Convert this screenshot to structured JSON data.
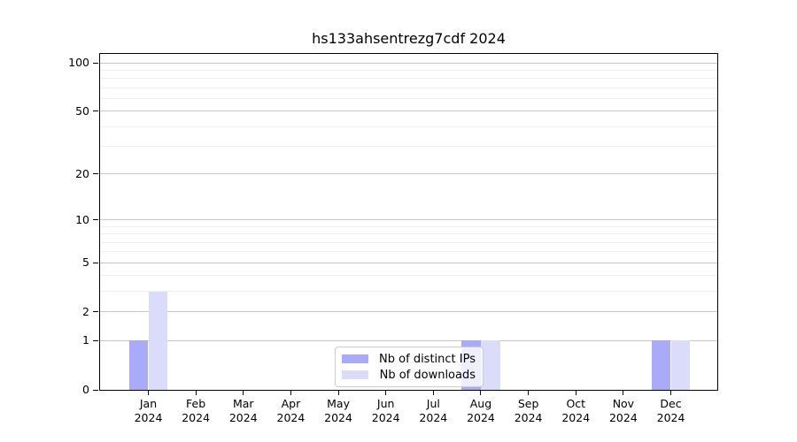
{
  "title": "hs133ahsentrezg7cdf 2024",
  "chart_data": {
    "type": "bar",
    "title": "hs133ahsentrezg7cdf 2024",
    "x_months": [
      "Jan",
      "Feb",
      "Mar",
      "Apr",
      "May",
      "Jun",
      "Jul",
      "Aug",
      "Sep",
      "Oct",
      "Nov",
      "Dec"
    ],
    "x_year": "2024",
    "series": [
      {
        "name": "Nb of distinct IPs",
        "color": "#a9abf9",
        "values": [
          1,
          0,
          0,
          0,
          0,
          0,
          0,
          1,
          0,
          0,
          0,
          1
        ]
      },
      {
        "name": "Nb of downloads",
        "color": "#dbdcfa",
        "values": [
          3,
          0,
          0,
          0,
          0,
          0,
          0,
          1,
          0,
          0,
          0,
          1
        ]
      }
    ],
    "y_scale": "log1p",
    "ylim": [
      0,
      100
    ],
    "y_ticks": [
      0,
      1,
      2,
      5,
      10,
      20,
      50,
      100
    ],
    "y_minor_ticks": [
      3,
      4,
      6,
      7,
      8,
      9,
      30,
      40,
      60,
      70,
      80,
      90
    ],
    "grid": "horizontal",
    "legend_position": "lower center",
    "xlabel": "",
    "ylabel": ""
  },
  "colors": {
    "background": "#ffffff",
    "axis": "#000000",
    "grid_major": "#c8c8c8",
    "grid_minor": "#efefef",
    "legend_border": "#cccccc",
    "bar_distinct_ips": "#a9abf9",
    "bar_downloads": "#dbdcfa"
  }
}
